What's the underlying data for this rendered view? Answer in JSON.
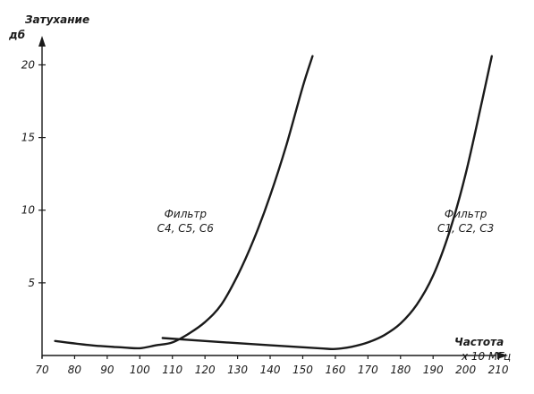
{
  "chart_data": {
    "type": "line",
    "ylabel": "Затухание",
    "yunit": "дб",
    "xlabel": "Частота",
    "xunit": "х 10 МГц",
    "xlim": [
      70,
      213
    ],
    "ylim": [
      0,
      22
    ],
    "xticks": [
      70,
      80,
      90,
      100,
      110,
      120,
      130,
      140,
      150,
      160,
      170,
      180,
      190,
      200,
      210
    ],
    "yticks": [
      5,
      10,
      15,
      20
    ],
    "grid": false,
    "series": [
      {
        "name": "Фильтр C4, C5, C6",
        "x": [
          74,
          85,
          95,
          100,
          105,
          110,
          115,
          120,
          125,
          130,
          135,
          140,
          145,
          150,
          153
        ],
        "y": [
          1.0,
          0.7,
          0.55,
          0.5,
          0.7,
          0.9,
          1.5,
          2.3,
          3.5,
          5.5,
          8.0,
          11.0,
          14.5,
          18.5,
          20.6
        ]
      },
      {
        "name": "Фильтр C1, C2, C3",
        "x": [
          107,
          120,
          140,
          155,
          160,
          165,
          170,
          175,
          180,
          185,
          190,
          195,
          200,
          205,
          208
        ],
        "y": [
          1.2,
          1.0,
          0.7,
          0.5,
          0.45,
          0.6,
          0.9,
          1.4,
          2.2,
          3.5,
          5.5,
          8.5,
          12.5,
          17.5,
          20.6
        ]
      }
    ],
    "annotations": [
      {
        "lines": [
          "Фильтр",
          "C4, C5, C6"
        ],
        "x": 114,
        "y": 9.5
      },
      {
        "lines": [
          "Фильтр",
          "C1, C2, C3"
        ],
        "x": 200,
        "y": 9.5
      }
    ]
  }
}
